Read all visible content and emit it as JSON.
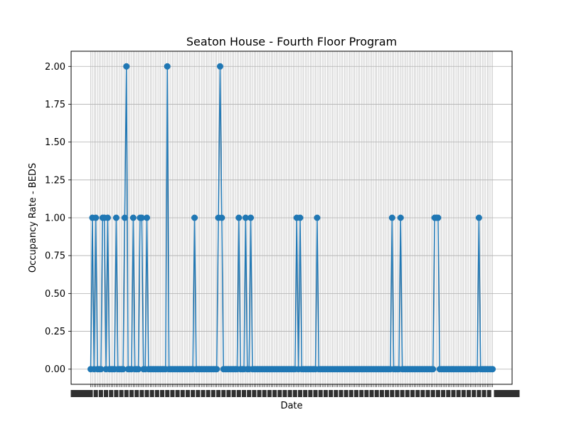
{
  "chart_data": {
    "type": "line",
    "title": "Seaton House - Fourth Floor Program",
    "xlabel": "Date",
    "ylabel": "Occupancy Rate - BEDS",
    "yticks": [
      "0.00",
      "0.25",
      "0.50",
      "0.75",
      "1.00",
      "1.25",
      "1.50",
      "1.75",
      "2.00"
    ],
    "ylim": [
      -0.1,
      2.1
    ],
    "grid": true,
    "marker": "circle",
    "color": "#1f77b4",
    "x_tick_labels_legible": false,
    "series": [
      {
        "values": [
          0,
          1,
          0,
          1,
          0,
          0,
          0,
          1,
          1,
          0,
          1,
          0,
          0,
          0,
          0,
          1,
          0,
          0,
          0,
          0,
          1,
          2,
          0,
          0,
          0,
          1,
          0,
          0,
          0,
          1,
          1,
          0,
          0,
          1,
          0,
          0,
          0,
          0,
          0,
          0,
          0,
          0,
          0,
          0,
          0,
          2,
          0,
          0,
          0,
          0,
          0,
          0,
          0,
          0,
          0,
          0,
          0,
          0,
          0,
          0,
          0,
          1,
          0,
          0,
          0,
          0,
          0,
          0,
          0,
          0,
          0,
          0,
          0,
          0,
          0,
          1,
          2,
          1,
          0,
          0,
          0,
          0,
          0,
          0,
          0,
          0,
          0,
          1,
          0,
          0,
          0,
          1,
          0,
          0,
          1,
          0,
          0,
          0,
          0,
          0,
          0,
          0,
          0,
          0,
          0,
          0,
          0,
          0,
          0,
          0,
          0,
          0,
          0,
          0,
          0,
          0,
          0,
          0,
          0,
          0,
          0,
          1,
          0,
          1,
          0,
          0,
          0,
          0,
          0,
          0,
          0,
          0,
          0,
          1,
          0,
          0,
          0,
          0,
          0,
          0,
          0,
          0,
          0,
          0,
          0,
          0,
          0,
          0,
          0,
          0,
          0,
          0,
          0,
          0,
          0,
          0,
          0,
          0,
          0,
          0,
          0,
          0,
          0,
          0,
          0,
          0,
          0,
          0,
          0,
          0,
          0,
          0,
          0,
          0,
          0,
          0,
          0,
          1,
          0,
          0,
          0,
          0,
          1,
          0,
          0,
          0,
          0,
          0,
          0,
          0,
          0,
          0,
          0,
          0,
          0,
          0,
          0,
          0,
          0,
          0,
          0,
          0,
          1,
          1,
          1,
          0,
          0,
          0,
          0,
          0,
          0,
          0,
          0,
          0,
          0,
          0,
          0,
          0,
          0,
          0,
          0,
          0,
          0,
          0,
          0,
          0,
          0,
          0,
          1,
          0,
          0,
          0,
          0,
          0,
          0,
          0,
          0
        ]
      }
    ]
  }
}
